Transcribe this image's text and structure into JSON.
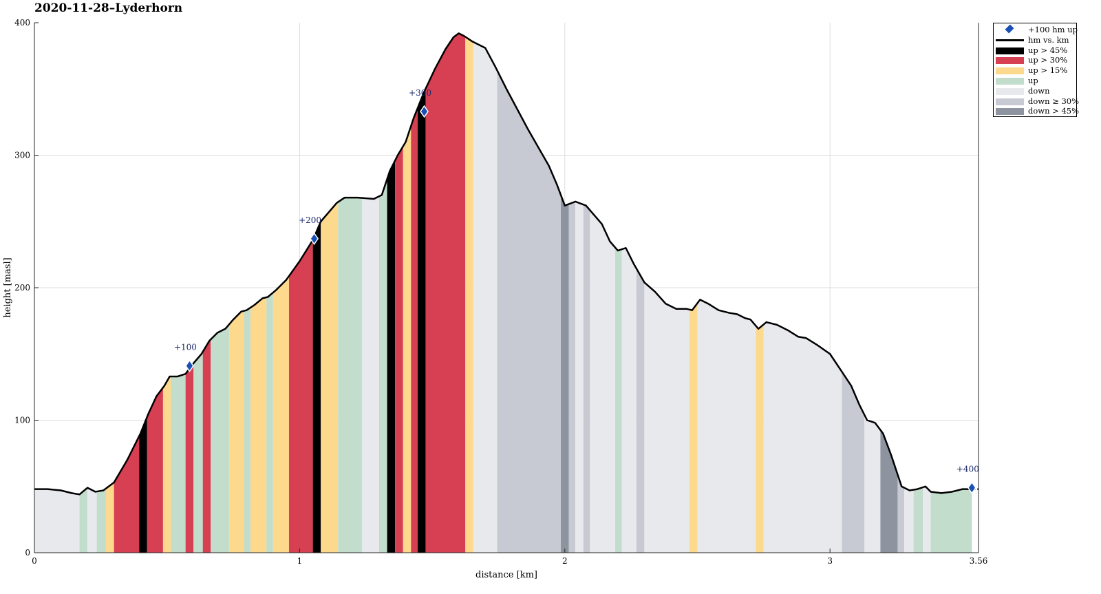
{
  "chart_data": {
    "type": "area",
    "title": "2020-11-28–Lyderhorn",
    "xlabel": "distance [km]",
    "ylabel": "height [masl]",
    "xlim": [
      0,
      3.56
    ],
    "ylim": [
      0,
      400
    ],
    "xticks": [
      {
        "value": 0,
        "label": "0"
      },
      {
        "value": 1,
        "label": "1"
      },
      {
        "value": 2,
        "label": "2"
      },
      {
        "value": 3,
        "label": "3"
      },
      {
        "value": 3.56,
        "label": "3.56"
      }
    ],
    "yticks": [
      {
        "value": 0,
        "label": "0"
      },
      {
        "value": 100,
        "label": "100"
      },
      {
        "value": 200,
        "label": "200"
      },
      {
        "value": 300,
        "label": "300"
      },
      {
        "value": 400,
        "label": "400"
      }
    ],
    "grid": true,
    "legend_position": "outside-top-right",
    "profile": {
      "x": [
        0,
        0.05,
        0.1,
        0.14,
        0.17,
        0.2,
        0.23,
        0.26,
        0.3,
        0.35,
        0.4,
        0.43,
        0.46,
        0.49,
        0.51,
        0.54,
        0.57,
        0.6,
        0.63,
        0.66,
        0.69,
        0.72,
        0.75,
        0.78,
        0.8,
        0.83,
        0.86,
        0.88,
        0.91,
        0.95,
        1.0,
        1.05,
        1.08,
        1.11,
        1.14,
        1.17,
        1.22,
        1.28,
        1.31,
        1.34,
        1.37,
        1.4,
        1.43,
        1.47,
        1.51,
        1.55,
        1.58,
        1.6,
        1.62,
        1.65,
        1.7,
        1.74,
        1.78,
        1.82,
        1.86,
        1.9,
        1.94,
        1.97,
        2.0,
        2.04,
        2.08,
        2.11,
        2.14,
        2.17,
        2.2,
        2.23,
        2.26,
        2.3,
        2.34,
        2.38,
        2.42,
        2.46,
        2.48,
        2.51,
        2.54,
        2.58,
        2.62,
        2.65,
        2.68,
        2.7,
        2.73,
        2.76,
        2.8,
        2.84,
        2.88,
        2.91,
        2.95,
        3.0,
        3.04,
        3.08,
        3.11,
        3.14,
        3.17,
        3.2,
        3.23,
        3.25,
        3.27,
        3.3,
        3.33,
        3.36,
        3.38,
        3.42,
        3.46,
        3.5,
        3.56
      ],
      "y": [
        48,
        48,
        47,
        45,
        44,
        49,
        46,
        47,
        53,
        70,
        90,
        105,
        118,
        126,
        133,
        133,
        135,
        143,
        150,
        160,
        166,
        169,
        176,
        182,
        183,
        187,
        192,
        193,
        198,
        206,
        220,
        236,
        250,
        257,
        264,
        268,
        268,
        267,
        270,
        288,
        300,
        310,
        328,
        348,
        365,
        380,
        389,
        392,
        390,
        386,
        381,
        366,
        350,
        335,
        320,
        306,
        292,
        278,
        262,
        265,
        262,
        255,
        248,
        235,
        228,
        230,
        218,
        204,
        197,
        188,
        184,
        184,
        183,
        191,
        188,
        183,
        181,
        180,
        177,
        176,
        169,
        174,
        172,
        168,
        163,
        162,
        157,
        150,
        138,
        126,
        112,
        100,
        98,
        90,
        74,
        62,
        50,
        47,
        48,
        50,
        46,
        45,
        46,
        48,
        48
      ]
    },
    "segments": [
      {
        "from": 0,
        "to": 0.17,
        "category": "down"
      },
      {
        "from": 0.17,
        "to": 0.2,
        "category": "up"
      },
      {
        "from": 0.2,
        "to": 0.235,
        "category": "down"
      },
      {
        "from": 0.235,
        "to": 0.27,
        "category": "up"
      },
      {
        "from": 0.27,
        "to": 0.3,
        "category": "up > 15%"
      },
      {
        "from": 0.3,
        "to": 0.395,
        "category": "up > 30%"
      },
      {
        "from": 0.395,
        "to": 0.425,
        "category": "up > 45%"
      },
      {
        "from": 0.425,
        "to": 0.485,
        "category": "up > 30%"
      },
      {
        "from": 0.485,
        "to": 0.515,
        "category": "up > 15%"
      },
      {
        "from": 0.515,
        "to": 0.57,
        "category": "up"
      },
      {
        "from": 0.57,
        "to": 0.6,
        "category": "up > 30%"
      },
      {
        "from": 0.6,
        "to": 0.635,
        "category": "up"
      },
      {
        "from": 0.635,
        "to": 0.665,
        "category": "up > 30%"
      },
      {
        "from": 0.665,
        "to": 0.735,
        "category": "up"
      },
      {
        "from": 0.735,
        "to": 0.79,
        "category": "up > 15%"
      },
      {
        "from": 0.79,
        "to": 0.815,
        "category": "up"
      },
      {
        "from": 0.815,
        "to": 0.875,
        "category": "up > 15%"
      },
      {
        "from": 0.875,
        "to": 0.9,
        "category": "up"
      },
      {
        "from": 0.9,
        "to": 0.96,
        "category": "up > 15%"
      },
      {
        "from": 0.96,
        "to": 1.05,
        "category": "up > 30%"
      },
      {
        "from": 1.05,
        "to": 1.08,
        "category": "up > 45%"
      },
      {
        "from": 1.08,
        "to": 1.145,
        "category": "up > 15%"
      },
      {
        "from": 1.145,
        "to": 1.235,
        "category": "up"
      },
      {
        "from": 1.235,
        "to": 1.3,
        "category": "down"
      },
      {
        "from": 1.3,
        "to": 1.33,
        "category": "up"
      },
      {
        "from": 1.33,
        "to": 1.36,
        "category": "up > 45%"
      },
      {
        "from": 1.36,
        "to": 1.39,
        "category": "up > 30%"
      },
      {
        "from": 1.39,
        "to": 1.42,
        "category": "up > 15%"
      },
      {
        "from": 1.42,
        "to": 1.445,
        "category": "up > 30%"
      },
      {
        "from": 1.445,
        "to": 1.475,
        "category": "up > 45%"
      },
      {
        "from": 1.475,
        "to": 1.625,
        "category": "up > 30%"
      },
      {
        "from": 1.625,
        "to": 1.655,
        "category": "up > 15%"
      },
      {
        "from": 1.655,
        "to": 1.745,
        "category": "down"
      },
      {
        "from": 1.745,
        "to": 1.985,
        "category": "down ≥ 30%"
      },
      {
        "from": 1.985,
        "to": 2.015,
        "category": "down > 45%"
      },
      {
        "from": 2.015,
        "to": 2.04,
        "category": "down ≥ 30%"
      },
      {
        "from": 2.04,
        "to": 2.07,
        "category": "down"
      },
      {
        "from": 2.07,
        "to": 2.095,
        "category": "down ≥ 30%"
      },
      {
        "from": 2.095,
        "to": 2.19,
        "category": "down"
      },
      {
        "from": 2.19,
        "to": 2.215,
        "category": "up"
      },
      {
        "from": 2.215,
        "to": 2.27,
        "category": "down"
      },
      {
        "from": 2.27,
        "to": 2.3,
        "category": "down ≥ 30%"
      },
      {
        "from": 2.3,
        "to": 2.47,
        "category": "down"
      },
      {
        "from": 2.47,
        "to": 2.5,
        "category": "up > 15%"
      },
      {
        "from": 2.5,
        "to": 2.72,
        "category": "down"
      },
      {
        "from": 2.72,
        "to": 2.75,
        "category": "up > 15%"
      },
      {
        "from": 2.75,
        "to": 3.045,
        "category": "down"
      },
      {
        "from": 3.045,
        "to": 3.13,
        "category": "down ≥ 30%"
      },
      {
        "from": 3.13,
        "to": 3.19,
        "category": "down"
      },
      {
        "from": 3.19,
        "to": 3.255,
        "category": "down > 45%"
      },
      {
        "from": 3.255,
        "to": 3.28,
        "category": "down ≥ 30%"
      },
      {
        "from": 3.28,
        "to": 3.315,
        "category": "down"
      },
      {
        "from": 3.315,
        "to": 3.35,
        "category": "up"
      },
      {
        "from": 3.35,
        "to": 3.38,
        "category": "down"
      },
      {
        "from": 3.38,
        "to": 3.535,
        "category": "up"
      }
    ],
    "markers": [
      {
        "x": 0.585,
        "y": 141,
        "label": "+100"
      },
      {
        "x": 1.055,
        "y": 237,
        "label": "+200"
      },
      {
        "x": 1.47,
        "y": 333,
        "label": "+300"
      },
      {
        "x": 3.535,
        "y": 49,
        "label": "+400"
      }
    ],
    "tail_dashed": {
      "from": 3.535,
      "to": 3.56,
      "y": 48
    },
    "legend": [
      {
        "label": "+100 hm up",
        "kind": "marker",
        "color": "#1a4fb5"
      },
      {
        "label": "hm vs. km",
        "kind": "line",
        "color": "#000000"
      },
      {
        "label": "up > 45%",
        "kind": "patch",
        "color": "#000000"
      },
      {
        "label": "up > 30%",
        "kind": "patch",
        "color": "#d73f52"
      },
      {
        "label": "up > 15%",
        "kind": "patch",
        "color": "#fdd98d"
      },
      {
        "label": "up",
        "kind": "patch",
        "color": "#c2ddcc"
      },
      {
        "label": "down",
        "kind": "patch",
        "color": "#e8e9ed"
      },
      {
        "label": "down ≥ 30%",
        "kind": "patch",
        "color": "#c7cad3"
      },
      {
        "label": "down > 45%",
        "kind": "patch",
        "color": "#8d949f"
      }
    ]
  }
}
